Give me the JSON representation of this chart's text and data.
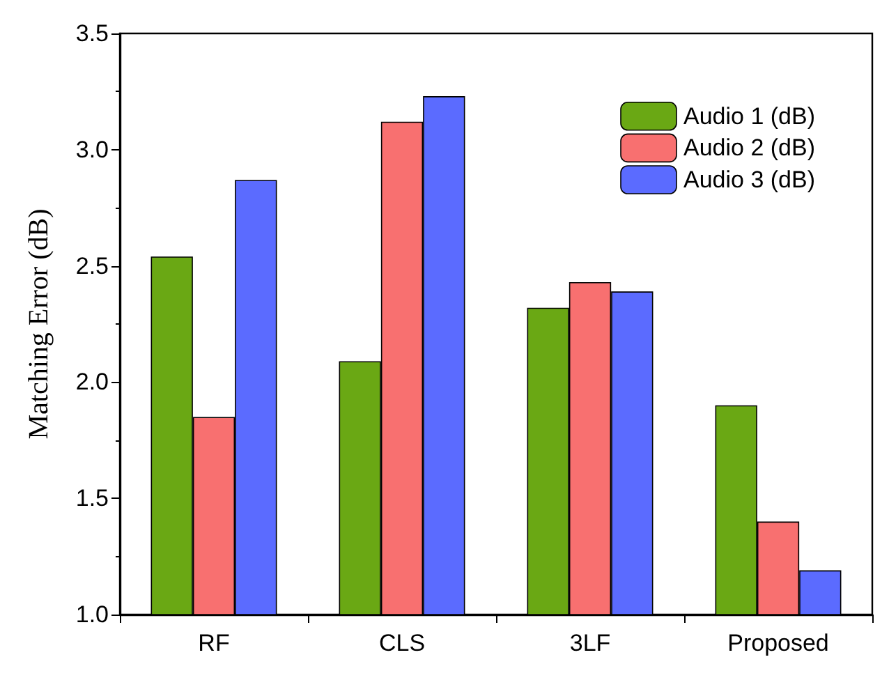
{
  "chart_data": {
    "type": "bar",
    "ylabel": "Matching Error (dB)",
    "categories": [
      "RF",
      "CLS",
      "3LF",
      "Proposed"
    ],
    "series": [
      {
        "name": "Audio 1 (dB)",
        "color": "#6aa814",
        "values": [
          2.54,
          2.09,
          2.32,
          1.9
        ]
      },
      {
        "name": "Audio 2 (dB)",
        "color": "#f87070",
        "values": [
          1.85,
          3.12,
          2.43,
          1.4
        ]
      },
      {
        "name": "Audio 3 (dB)",
        "color": "#5b6bff",
        "values": [
          2.87,
          3.23,
          2.39,
          1.19
        ]
      }
    ],
    "ylim": [
      1.0,
      3.5
    ],
    "yticks": [
      {
        "value": 1.0,
        "label": "1.0"
      },
      {
        "value": 1.5,
        "label": "1.5"
      },
      {
        "value": 2.0,
        "label": "2.0"
      },
      {
        "value": 2.5,
        "label": "2.5"
      },
      {
        "value": 3.0,
        "label": "3.0"
      },
      {
        "value": 3.5,
        "label": "3.5"
      }
    ],
    "grid": false,
    "legend": "top right"
  }
}
